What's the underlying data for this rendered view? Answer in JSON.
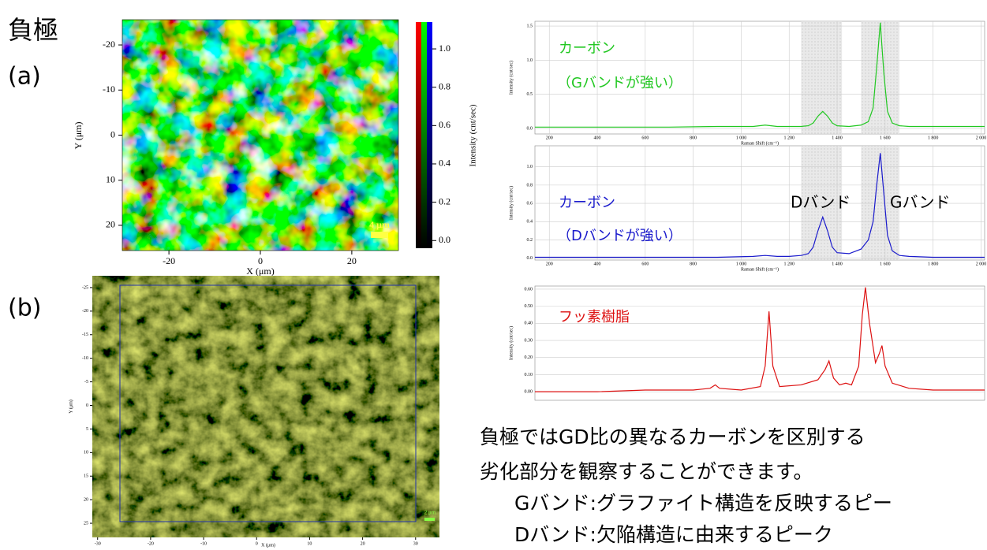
{
  "heading": "負極",
  "label_a": "(a)",
  "label_b": "(b)",
  "map_a": {
    "x_label": "X (μm)",
    "y_label": "Y (μm)",
    "xlim": [
      -30.2,
      30.2
    ],
    "ylim": [
      -25.6,
      25.6
    ],
    "xticks": [
      -20,
      0,
      20
    ],
    "yticks": [
      -20,
      -10,
      0,
      10,
      20
    ],
    "scale_bar": "4 μm",
    "colorbar": {
      "label": "Intensity (cnt/sec)",
      "lim": [
        -0.04,
        1.14
      ],
      "ticks": [
        {
          "value": 0,
          "label": "0.0"
        },
        {
          "value": 0.2,
          "label": "0.2"
        },
        {
          "value": 0.4,
          "label": "0.4"
        },
        {
          "value": 0.6,
          "label": "0.6"
        },
        {
          "value": 0.8,
          "label": "0.8"
        },
        {
          "value": 1,
          "label": "1.0"
        }
      ]
    }
  },
  "map_b": {
    "x_label": "X (μm)",
    "y_label": "Y (μm)",
    "xlim": [
      -31,
      34.5
    ],
    "ylim": [
      -27.5,
      28
    ],
    "xticks": [
      -30,
      -20,
      -10,
      0,
      10,
      20,
      30
    ],
    "yticks": [
      -25,
      -20,
      -15,
      -10,
      -5,
      0,
      5,
      10,
      15,
      20,
      25
    ],
    "scale_bar": "2 μm"
  },
  "chart_data": [
    {
      "type": "line",
      "color": "#22c822",
      "x_label": "Raman Shift (cm⁻¹)",
      "y_label": "Intensity (cnt/sec)",
      "xlim": [
        140,
        2015
      ],
      "ylim": [
        -0.08,
        1.57
      ],
      "xticks": [
        200,
        400,
        600,
        800,
        {
          "value": 1000,
          "label": "1 000"
        },
        {
          "value": 1200,
          "label": "1 200"
        },
        {
          "value": 1400,
          "label": "1 400"
        },
        {
          "value": 1600,
          "label": "1 600"
        },
        {
          "value": 1800,
          "label": "1 800"
        },
        {
          "value": 2000,
          "label": "2 000"
        }
      ],
      "yticks": [
        {
          "value": 0,
          "label": "0.0"
        },
        0.5,
        {
          "value": 1,
          "label": "1.0"
        },
        1.5
      ],
      "bands": [
        [
          1250,
          1420
        ],
        [
          1500,
          1660
        ]
      ],
      "annotations": [
        {
          "text": "カーボン",
          "color": "#22c822"
        },
        {
          "text": "（Gバンドが強い）",
          "color": "#22c822"
        }
      ],
      "x": [
        140,
        300,
        500,
        700,
        900,
        1050,
        1100,
        1150,
        1200,
        1250,
        1280,
        1300,
        1320,
        1340,
        1360,
        1380,
        1400,
        1450,
        1500,
        1530,
        1550,
        1565,
        1580,
        1595,
        1610,
        1630,
        1660,
        1700,
        1800,
        1900,
        2015
      ],
      "values": [
        0.02,
        0.02,
        0.02,
        0.02,
        0.03,
        0.03,
        0.05,
        0.03,
        0.03,
        0.03,
        0.04,
        0.08,
        0.18,
        0.25,
        0.18,
        0.08,
        0.04,
        0.03,
        0.05,
        0.1,
        0.3,
        0.9,
        1.55,
        0.8,
        0.25,
        0.08,
        0.04,
        0.03,
        0.03,
        0.03,
        0.03
      ]
    },
    {
      "type": "line",
      "color": "#1a1acc",
      "x_label": "Raman Shift (cm⁻¹)",
      "y_label": "Intensity (cnt/sec)",
      "xlim": [
        140,
        2015
      ],
      "ylim": [
        -0.02,
        1.23
      ],
      "xticks": [
        200,
        400,
        600,
        800,
        {
          "value": 1000,
          "label": "1 000"
        },
        {
          "value": 1200,
          "label": "1 200"
        },
        {
          "value": 1400,
          "label": "1 400"
        },
        {
          "value": 1600,
          "label": "1 600"
        },
        {
          "value": 1800,
          "label": "1 800"
        },
        {
          "value": 2000,
          "label": "2 000"
        }
      ],
      "yticks": [
        {
          "value": 0,
          "label": "0.0"
        },
        0.2,
        0.4,
        0.6,
        0.8,
        {
          "value": 1,
          "label": "1.0"
        }
      ],
      "bands": [
        [
          1250,
          1420
        ],
        [
          1500,
          1660
        ]
      ],
      "annotations": [
        {
          "text": "カーボン",
          "color": "#1a1acc"
        },
        {
          "text": "（Dバンドが強い）",
          "color": "#1a1acc"
        },
        {
          "text": "Dバンド",
          "color": "#000000"
        },
        {
          "text": "Gバンド",
          "color": "#000000"
        }
      ],
      "x": [
        140,
        300,
        500,
        700,
        900,
        1050,
        1100,
        1150,
        1200,
        1250,
        1280,
        1300,
        1320,
        1340,
        1360,
        1380,
        1400,
        1450,
        1500,
        1530,
        1550,
        1565,
        1580,
        1595,
        1610,
        1630,
        1660,
        1700,
        1800,
        1900,
        2015
      ],
      "values": [
        0.01,
        0.01,
        0.01,
        0.01,
        0.01,
        0.02,
        0.03,
        0.02,
        0.02,
        0.03,
        0.05,
        0.12,
        0.3,
        0.45,
        0.3,
        0.12,
        0.06,
        0.05,
        0.1,
        0.2,
        0.4,
        0.8,
        1.15,
        0.7,
        0.25,
        0.08,
        0.03,
        0.02,
        0.01,
        0.01,
        0.01
      ]
    },
    {
      "type": "line",
      "color": "#dd1111",
      "y_label": "Intensity (cnt/sec)",
      "xlim": [
        140,
        2015
      ],
      "ylim": [
        -0.05,
        0.618
      ],
      "yticks": [
        {
          "value": 0,
          "label": "0.00"
        },
        {
          "value": 0.1,
          "label": "0.10"
        },
        {
          "value": 0.2,
          "label": "0.20"
        },
        {
          "value": 0.3,
          "label": "0.30"
        },
        {
          "value": 0.4,
          "label": "0.40"
        },
        {
          "value": 0.5,
          "label": "0.50"
        },
        {
          "value": 0.6,
          "label": "0.60"
        }
      ],
      "annotations": [
        {
          "text": "フッ素樹脂",
          "color": "#dd1111"
        }
      ],
      "x": [
        140,
        400,
        600,
        800,
        870,
        892,
        910,
        1000,
        1080,
        1100,
        1116,
        1132,
        1160,
        1250,
        1320,
        1350,
        1366,
        1385,
        1410,
        1436,
        1460,
        1490,
        1505,
        1518,
        1535,
        1560,
        1575,
        1587,
        1600,
        1630,
        1700,
        1800,
        2015
      ],
      "values": [
        0.0,
        0.0,
        0.01,
        0.01,
        0.02,
        0.04,
        0.02,
        0.01,
        0.03,
        0.15,
        0.47,
        0.15,
        0.03,
        0.04,
        0.07,
        0.13,
        0.18,
        0.08,
        0.04,
        0.05,
        0.04,
        0.15,
        0.45,
        0.61,
        0.4,
        0.17,
        0.22,
        0.27,
        0.15,
        0.05,
        0.02,
        0.01,
        0.01
      ]
    }
  ],
  "description": [
    "負極ではGD比の異なるカーボンを区別する",
    "劣化部分を観察することができます。",
    "Gバンド:グラファイト構造を反映するピー",
    "Dバンド:欠陥構造に由来するピーク"
  ]
}
